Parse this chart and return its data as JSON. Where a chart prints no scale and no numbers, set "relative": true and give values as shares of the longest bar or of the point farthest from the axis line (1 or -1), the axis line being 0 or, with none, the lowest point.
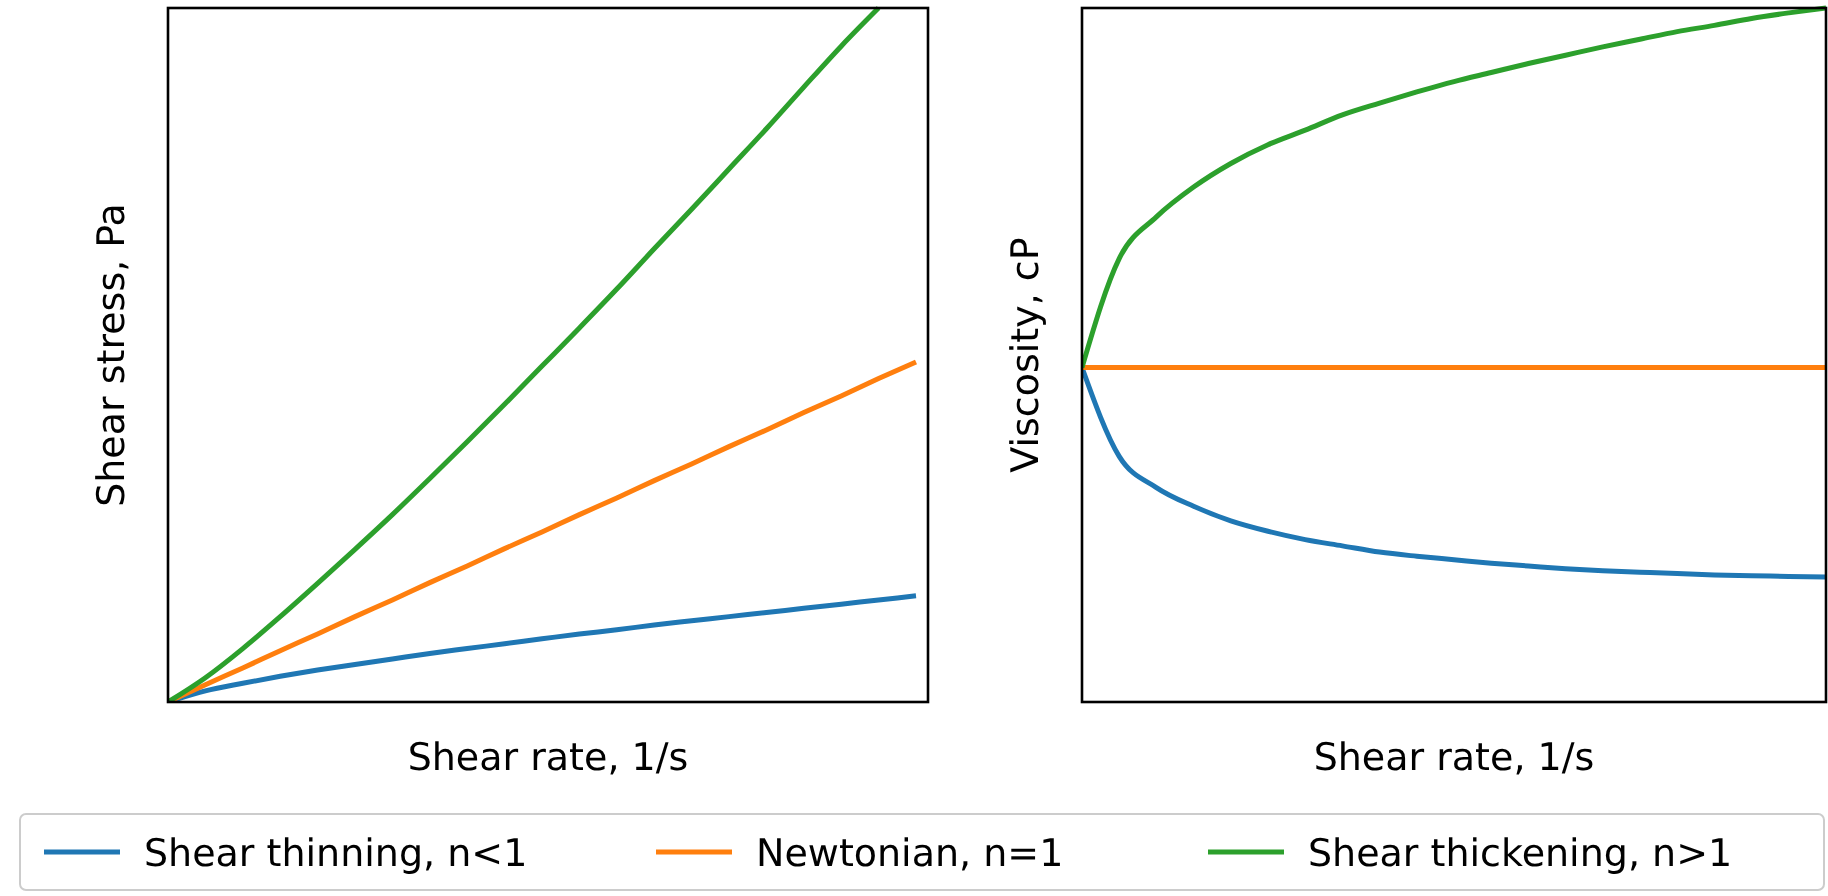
{
  "chart_data": [
    {
      "type": "line",
      "relative": true,
      "xlabel": "Shear rate, 1/s",
      "ylabel": "Shear stress, Pa",
      "legend": "bottom",
      "tick_labels": false,
      "categories": [
        null,
        null,
        null,
        null,
        null,
        null,
        null,
        null,
        null,
        null,
        null,
        null,
        null,
        null,
        null,
        null,
        null,
        null,
        null,
        null,
        null
      ],
      "series": [
        {
          "name": "Shear thinning, n<1",
          "color": "#1f77b4",
          "values": [
            0,
            0.016,
            0.027,
            0.037,
            0.046,
            0.054,
            0.062,
            0.07,
            0.077,
            0.084,
            0.091,
            0.098,
            0.104,
            0.111,
            0.117,
            0.123,
            0.129,
            0.135,
            0.141,
            0.147,
            0.153
          ]
        },
        {
          "name": "Newtonian, n=1",
          "color": "#ff7f0e",
          "values": [
            0,
            0.025,
            0.049,
            0.074,
            0.098,
            0.123,
            0.147,
            0.172,
            0.196,
            0.221,
            0.245,
            0.27,
            0.294,
            0.319,
            0.343,
            0.368,
            0.392,
            0.417,
            0.441,
            0.466,
            0.49
          ]
        },
        {
          "name": "Shear thickening, n>1",
          "color": "#2ca02c",
          "values": [
            0,
            0.035,
            0.077,
            0.123,
            0.171,
            0.22,
            0.27,
            0.322,
            0.375,
            0.429,
            0.484,
            0.539,
            0.595,
            0.653,
            0.71,
            0.768,
            0.826,
            0.886,
            0.945,
            1.0,
            null
          ]
        }
      ]
    },
    {
      "type": "line",
      "relative": true,
      "xlabel": "Shear rate, 1/s",
      "ylabel": "Viscosity, cP",
      "tick_labels": false,
      "categories": [
        null,
        null,
        null,
        null,
        null,
        null,
        null,
        null,
        null,
        null,
        null,
        null,
        null,
        null,
        null,
        null,
        null,
        null,
        null,
        null,
        null
      ],
      "series": [
        {
          "color": "#1f77b4",
          "values": [
            0.482,
            0.354,
            0.309,
            0.282,
            0.261,
            0.246,
            0.234,
            0.225,
            0.216,
            0.21,
            0.205,
            0.2,
            0.196,
            0.192,
            0.189,
            0.187,
            0.185,
            0.183,
            0.182,
            0.181,
            0.18
          ]
        },
        {
          "color": "#ff7f0e",
          "values": [
            0.482,
            0.482,
            0.482,
            0.482,
            0.482,
            0.482,
            0.482,
            0.482,
            0.482,
            0.482,
            0.482,
            0.482,
            0.482,
            0.482,
            0.482,
            0.482,
            0.482,
            0.482,
            0.482,
            0.482,
            0.482
          ]
        },
        {
          "color": "#2ca02c",
          "values": [
            0.482,
            0.639,
            0.699,
            0.742,
            0.776,
            0.803,
            0.824,
            0.846,
            0.863,
            0.879,
            0.894,
            0.907,
            0.92,
            0.932,
            0.944,
            0.955,
            0.966,
            0.975,
            0.985,
            0.993,
            1.0
          ]
        }
      ]
    }
  ]
}
